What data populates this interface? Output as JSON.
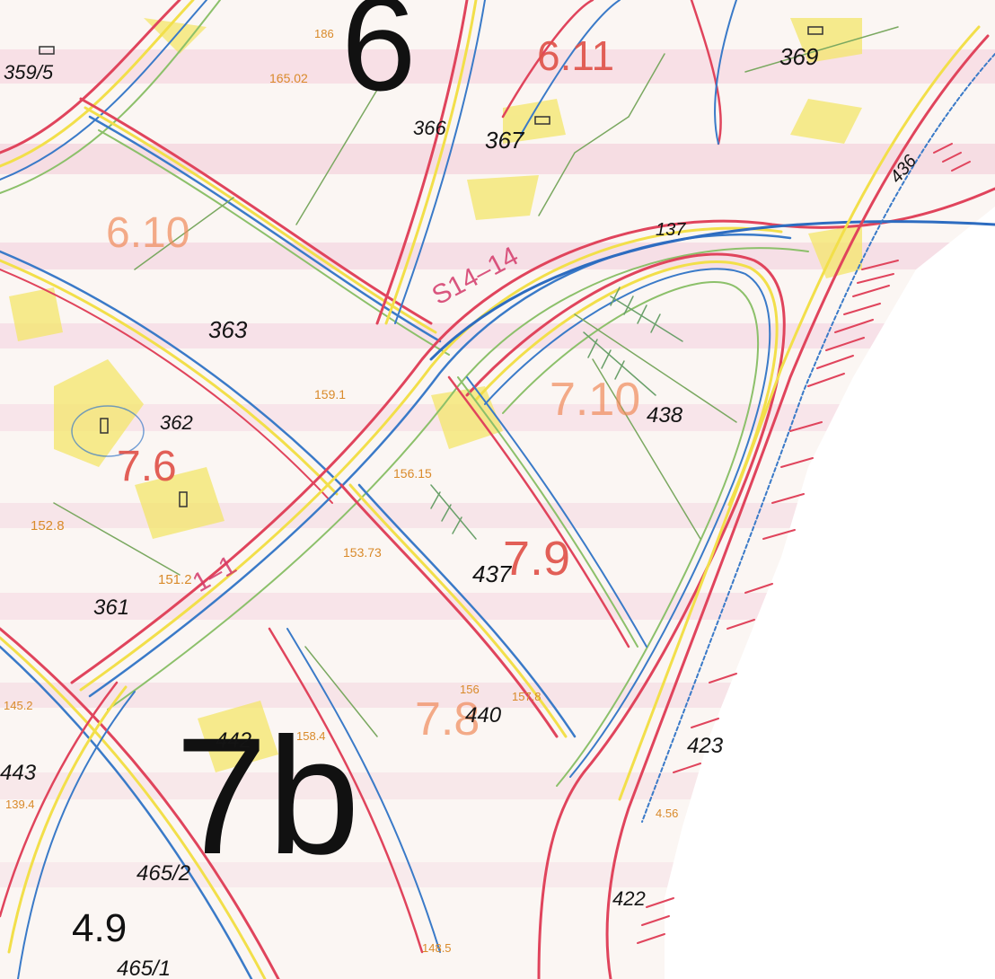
{
  "map": {
    "sheet_labels": [
      {
        "id": "sheet-6",
        "text": "6"
      },
      {
        "id": "sheet-7b",
        "text": "7b"
      }
    ],
    "zone_labels": [
      {
        "id": "zone-6-11",
        "text": "6.11"
      },
      {
        "id": "zone-6-10",
        "text": "6.10"
      },
      {
        "id": "zone-7-10",
        "text": "7.10"
      },
      {
        "id": "zone-7-6",
        "text": "7.6"
      },
      {
        "id": "zone-7-9",
        "text": "7.9"
      },
      {
        "id": "zone-7-8",
        "text": "7.8"
      },
      {
        "id": "zone-4-9",
        "text": "4.9"
      }
    ],
    "parcel_labels": [
      {
        "id": "p-369",
        "text": "369"
      },
      {
        "id": "p-367",
        "text": "367"
      },
      {
        "id": "p-366",
        "text": "366"
      },
      {
        "id": "p-363",
        "text": "363"
      },
      {
        "id": "p-362",
        "text": "362"
      },
      {
        "id": "p-438",
        "text": "438"
      },
      {
        "id": "p-437",
        "text": "437"
      },
      {
        "id": "p-361",
        "text": "361"
      },
      {
        "id": "p-440",
        "text": "440"
      },
      {
        "id": "p-442",
        "text": "442"
      },
      {
        "id": "p-423",
        "text": "423"
      },
      {
        "id": "p-443",
        "text": "443"
      },
      {
        "id": "p-465-2",
        "text": "465/2"
      },
      {
        "id": "p-465-1",
        "text": "465/1"
      },
      {
        "id": "p-422",
        "text": "422"
      },
      {
        "id": "p-359-5",
        "text": "359/5"
      },
      {
        "id": "p-137",
        "text": "137"
      },
      {
        "id": "p-436",
        "text": "436"
      }
    ],
    "elevation_labels": [
      {
        "id": "e-165-02",
        "text": "165.02"
      },
      {
        "id": "e-159-1",
        "text": "159.1"
      },
      {
        "id": "e-152-8",
        "text": "152.8"
      },
      {
        "id": "e-151-2",
        "text": "151.2"
      },
      {
        "id": "e-153-73",
        "text": "153.73"
      },
      {
        "id": "e-156-15",
        "text": "156.15"
      },
      {
        "id": "e-148-5",
        "text": "148.5"
      },
      {
        "id": "e-139-4",
        "text": "139.4"
      },
      {
        "id": "e-145-2",
        "text": "145.2"
      },
      {
        "id": "e-157-8",
        "text": "157.8"
      },
      {
        "id": "e-158-4",
        "text": "158.4"
      },
      {
        "id": "e-156",
        "text": "156"
      },
      {
        "id": "e-186",
        "text": "186"
      },
      {
        "id": "e-4-56",
        "text": "4.56"
      }
    ],
    "road_labels": [
      {
        "id": "road-s14-14",
        "text": "S14–14"
      },
      {
        "id": "road-1-1",
        "text": "1–1"
      }
    ],
    "colors": {
      "road_red": "#e0445c",
      "road_blue": "#3a7ac8",
      "road_yellow": "#f2df4a",
      "road_green": "#8cc06a",
      "zone_text": "#e0534a",
      "elevation_text": "#d98a2a"
    }
  }
}
